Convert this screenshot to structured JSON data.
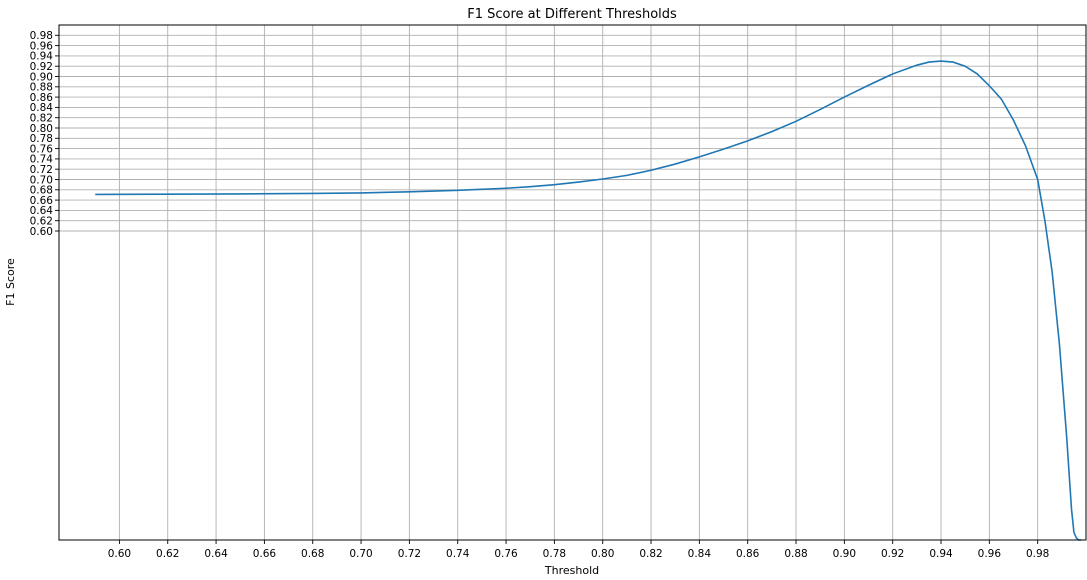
{
  "chart_data": {
    "type": "line",
    "title": "F1 Score at Different Thresholds",
    "xlabel": "Threshold",
    "ylabel": "F1 Score",
    "xlim": [
      0.575,
      1.0
    ],
    "ylim": [
      0.0,
      1.0
    ],
    "grid": true,
    "x_ticks": [
      "0.60",
      "0.62",
      "0.64",
      "0.66",
      "0.68",
      "0.70",
      "0.72",
      "0.74",
      "0.76",
      "0.78",
      "0.80",
      "0.82",
      "0.84",
      "0.86",
      "0.88",
      "0.90",
      "0.92",
      "0.94",
      "0.96",
      "0.98"
    ],
    "y_ticks": [
      "0.60",
      "0.62",
      "0.64",
      "0.66",
      "0.68",
      "0.70",
      "0.72",
      "0.74",
      "0.76",
      "0.78",
      "0.80",
      "0.82",
      "0.84",
      "0.86",
      "0.88",
      "0.90",
      "0.92",
      "0.94",
      "0.96",
      "0.98"
    ],
    "color": "#1f77b4",
    "series": [
      {
        "x": [
          0.59,
          0.62,
          0.65,
          0.68,
          0.7,
          0.72,
          0.74,
          0.76,
          0.77,
          0.78,
          0.79,
          0.8,
          0.81,
          0.82,
          0.83,
          0.84,
          0.85,
          0.86,
          0.87,
          0.88,
          0.89,
          0.9,
          0.91,
          0.92,
          0.93,
          0.935,
          0.94,
          0.945,
          0.95,
          0.955,
          0.96,
          0.965,
          0.97,
          0.975,
          0.98,
          0.983,
          0.986,
          0.989,
          0.992,
          0.994,
          0.995,
          0.996,
          0.997,
          0.998
        ],
        "y": [
          0.671,
          0.6715,
          0.672,
          0.673,
          0.674,
          0.676,
          0.679,
          0.683,
          0.686,
          0.69,
          0.695,
          0.701,
          0.708,
          0.718,
          0.73,
          0.744,
          0.759,
          0.775,
          0.793,
          0.813,
          0.836,
          0.86,
          0.883,
          0.905,
          0.922,
          0.928,
          0.93,
          0.928,
          0.92,
          0.905,
          0.882,
          0.856,
          0.815,
          0.765,
          0.7,
          0.62,
          0.52,
          0.38,
          0.2,
          0.06,
          0.015,
          0.004,
          0.0,
          0.0
        ]
      }
    ]
  }
}
